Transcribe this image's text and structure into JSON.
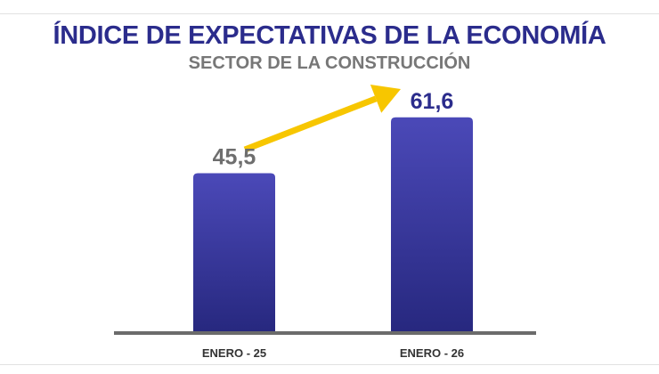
{
  "chart_data": {
    "type": "bar",
    "title": "ÍNDICE DE EXPECTATIVAS DE LA ECONOMÍA",
    "subtitle": "SECTOR DE LA CONSTRUCCIÓN",
    "categories": [
      "ENERO - 25",
      "ENERO - 26"
    ],
    "values": [
      45.5,
      61.6
    ],
    "value_labels": [
      "45,5",
      "61,6"
    ],
    "ylim": [
      0,
      70
    ],
    "grid": false,
    "legend": "none",
    "colors": {
      "bar_top": "#4b49b8",
      "bar_bottom": "#27287f",
      "label_first": "#6e6e6e",
      "label_last": "#2b2c8c",
      "arrow": "#f7c600",
      "baseline": "#6b6b6b"
    }
  }
}
